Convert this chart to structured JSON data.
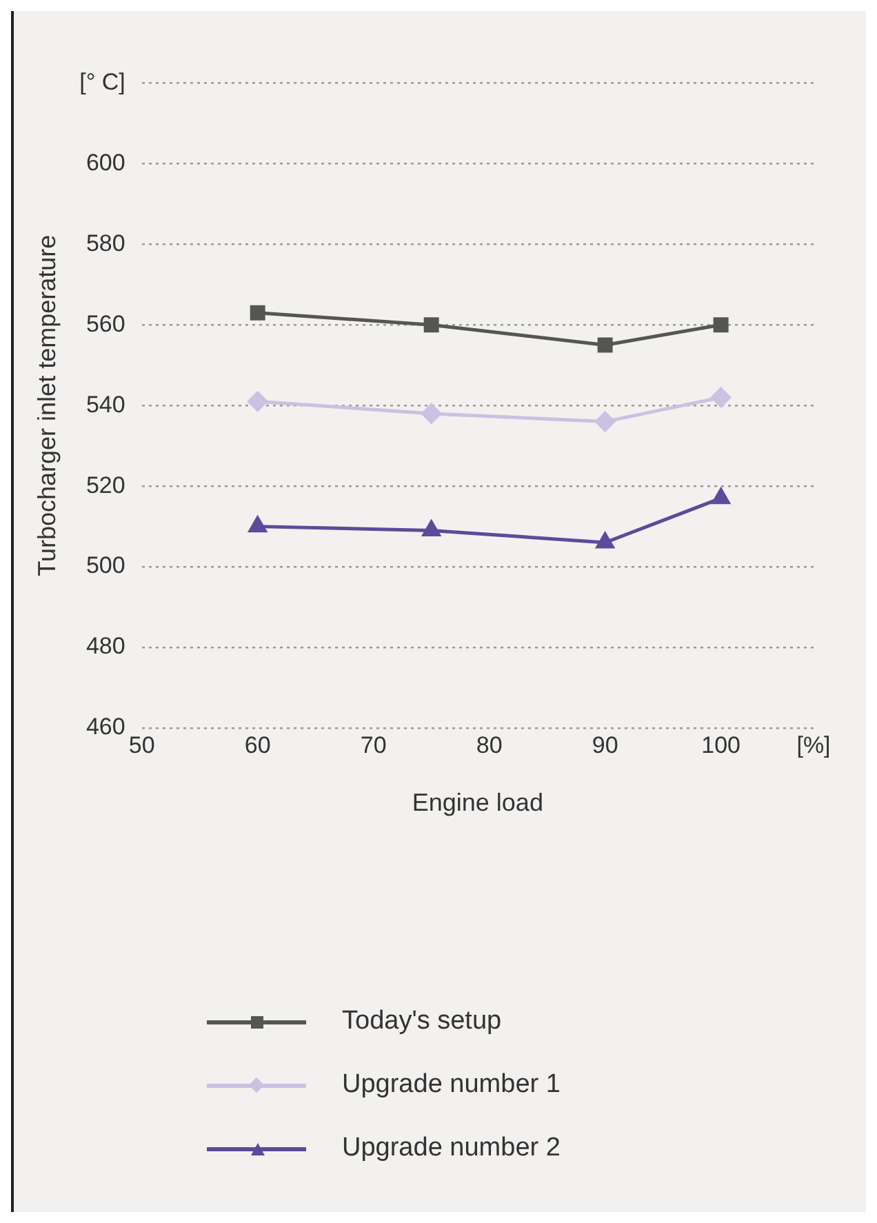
{
  "chart_data": {
    "type": "line",
    "xlabel": "Engine load",
    "ylabel": "Turbocharger inlet temperature",
    "x": [
      60,
      75,
      90,
      100
    ],
    "series": [
      {
        "name": "Today's setup",
        "color": "#555551",
        "marker": "square",
        "values": [
          563,
          560,
          555,
          560
        ]
      },
      {
        "name": "Upgrade number 1",
        "color": "#cbc1e2",
        "marker": "diamond",
        "values": [
          541,
          538,
          536,
          542
        ]
      },
      {
        "name": "Upgrade number 2",
        "color": "#5b4b9c",
        "marker": "triangle",
        "values": [
          510,
          509,
          506,
          517
        ]
      }
    ],
    "xlim": [
      50,
      108
    ],
    "xticks": [
      50,
      60,
      70,
      80,
      90,
      100,
      {
        "value": 108,
        "label": "[%]"
      }
    ],
    "ylim": [
      460,
      620
    ],
    "yticks": [
      460,
      480,
      500,
      520,
      540,
      560,
      580,
      600,
      {
        "value": 620,
        "label": "[° C]"
      }
    ],
    "grid": "y",
    "legend": "bottom",
    "line_style": "solid"
  }
}
